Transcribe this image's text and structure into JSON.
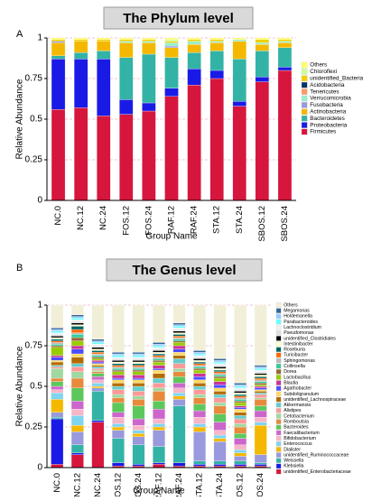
{
  "chart_data": [
    {
      "type": "stacked_bar",
      "panel_label": "A",
      "title": "The Phylum level",
      "xlabel": "Group Name",
      "ylabel": "Relative Abundance",
      "categories": [
        "NC.0",
        "NC.12",
        "NC.24",
        "FOS.12",
        "FOS.24",
        "RAF.12",
        "RAF.24",
        "STA.12",
        "STA.24",
        "SBOS.12",
        "SBOS.24"
      ],
      "ylim": [
        0,
        1
      ],
      "yticks": [
        0,
        0.25,
        0.5,
        0.75,
        1
      ],
      "grid": true,
      "series": [
        {
          "name": "Firmicutes",
          "color": "#d6163d",
          "values": [
            0.56,
            0.57,
            0.52,
            0.53,
            0.55,
            0.64,
            0.71,
            0.75,
            0.58,
            0.73,
            0.8
          ]
        },
        {
          "name": "Proteobacteria",
          "color": "#1a1ae6",
          "values": [
            0.31,
            0.3,
            0.35,
            0.09,
            0.05,
            0.05,
            0.1,
            0.05,
            0.03,
            0.03,
            0.02
          ]
        },
        {
          "name": "Bacteroidetes",
          "color": "#33b3a6",
          "values": [
            0.02,
            0.04,
            0.05,
            0.26,
            0.3,
            0.19,
            0.1,
            0.12,
            0.26,
            0.16,
            0.12
          ]
        },
        {
          "name": "Actinobacteria",
          "color": "#f5b800",
          "values": [
            0.08,
            0.07,
            0.06,
            0.09,
            0.07,
            0.06,
            0.05,
            0.05,
            0.11,
            0.04,
            0.03
          ]
        },
        {
          "name": "Fusobacteria",
          "color": "#9999dd",
          "values": [
            0.01,
            0,
            0,
            0,
            0,
            0.01,
            0,
            0,
            0,
            0,
            0
          ]
        },
        {
          "name": "Verrucomicrobia",
          "color": "#99eecc",
          "values": [
            0,
            0,
            0,
            0.01,
            0.01,
            0.02,
            0.02,
            0.01,
            0.01,
            0.01,
            0.01
          ]
        },
        {
          "name": "Tenericutes",
          "color": "#ff9966",
          "values": [
            0,
            0,
            0,
            0,
            0,
            0,
            0,
            0,
            0,
            0,
            0
          ]
        },
        {
          "name": "Acidobacteria",
          "color": "#003366",
          "values": [
            0,
            0,
            0,
            0,
            0,
            0,
            0,
            0,
            0,
            0,
            0
          ]
        },
        {
          "name": "unidentified_Bacteria",
          "color": "#f0d000",
          "values": [
            0.01,
            0.01,
            0.01,
            0.01,
            0.01,
            0.01,
            0.01,
            0.01,
            0,
            0.02,
            0.01
          ]
        },
        {
          "name": "Chloroflexi",
          "color": "#ccff99",
          "values": [
            0,
            0,
            0,
            0,
            0,
            0.01,
            0,
            0,
            0,
            0,
            0
          ]
        },
        {
          "name": "Others",
          "color": "#ffff66",
          "values": [
            0.01,
            0.01,
            0.01,
            0.01,
            0.01,
            0.01,
            0.01,
            0.01,
            0.01,
            0.01,
            0.01
          ]
        }
      ]
    },
    {
      "type": "stacked_bar",
      "panel_label": "B",
      "title": "The Genus level",
      "xlabel": "Group Name",
      "ylabel": "Relative Abundance",
      "categories": [
        "NC.0",
        "NC.12",
        "NC.24",
        "FOS.12",
        "FOS.24",
        "RAF.12",
        "RAF.24",
        "STA.12",
        "STA.24",
        "SBOS.12",
        "SBOS.24"
      ],
      "ylim": [
        0,
        1
      ],
      "yticks": [
        0,
        0.25,
        0.5,
        0.75,
        1
      ],
      "grid": true,
      "series": [
        {
          "name": "unidentified_Enterobacteriaceae",
          "color": "#d6163d",
          "values": [
            0.02,
            0.08,
            0.28,
            0.01,
            0.01,
            0.02,
            0.01,
            0.01,
            0.01,
            0.01,
            0.01
          ]
        },
        {
          "name": "Klebsiella",
          "color": "#1a1ae6",
          "values": [
            0.28,
            0.01,
            0.01,
            0.02,
            0.01,
            0.01,
            0.02,
            0.01,
            0.01,
            0.01,
            0.01
          ]
        },
        {
          "name": "Weissella",
          "color": "#33b3a6",
          "values": [
            0.01,
            0.05,
            0.18,
            0.15,
            0.12,
            0.1,
            0.35,
            0.02,
            0.02,
            0.02,
            0.01
          ]
        },
        {
          "name": "unidentified_Ruminococcaceae",
          "color": "#9999dd",
          "values": [
            0.03,
            0.08,
            0.02,
            0.05,
            0.05,
            0.1,
            0.04,
            0.18,
            0.12,
            0.03,
            0.05
          ]
        },
        {
          "name": "Dialister",
          "color": "#f5b800",
          "values": [
            0.08,
            0.04,
            0.01,
            0.02,
            0.02,
            0.02,
            0.02,
            0.03,
            0.02,
            0.02,
            0.18
          ]
        },
        {
          "name": "Enterococcus",
          "color": "#7fd4f0",
          "values": [
            0.04,
            0.06,
            0.02,
            0.02,
            0.02,
            0.02,
            0.02,
            0.02,
            0.02,
            0.02,
            0.02
          ]
        },
        {
          "name": "Bifidobacterium",
          "color": "#f7b6c8",
          "values": [
            0.02,
            0.04,
            0.02,
            0.04,
            0.03,
            0.03,
            0.03,
            0.04,
            0.03,
            0.03,
            0.03
          ]
        },
        {
          "name": "Faecalibacterium",
          "color": "#cc66cc",
          "values": [
            0.02,
            0.05,
            0.02,
            0.03,
            0.04,
            0.06,
            0.03,
            0.04,
            0.05,
            0.04,
            0.04
          ]
        },
        {
          "name": "Bacteroides",
          "color": "#5cc85c",
          "values": [
            0.03,
            0.08,
            0.02,
            0.06,
            0.08,
            0.05,
            0.04,
            0.04,
            0.05,
            0.03,
            0.03
          ]
        },
        {
          "name": "Romboutsia",
          "color": "#e88a3c",
          "values": [
            0.02,
            0.06,
            0.01,
            0.03,
            0.04,
            0.06,
            0.03,
            0.04,
            0.05,
            0.04,
            0.04
          ]
        },
        {
          "name": "Cetobacterium",
          "color": "#a0d8a0",
          "values": [
            0.06,
            0.04,
            0.01,
            0.02,
            0.02,
            0.02,
            0.02,
            0.02,
            0.02,
            0.02,
            0.01
          ]
        },
        {
          "name": "Alistipes",
          "color": "#ff9999",
          "values": [
            0.01,
            0.03,
            0.01,
            0.03,
            0.03,
            0.03,
            0.03,
            0.03,
            0.03,
            0.03,
            0.02
          ]
        },
        {
          "name": "Akkermansia",
          "color": "#66cccc",
          "values": [
            0.01,
            0.02,
            0.01,
            0.02,
            0.03,
            0.03,
            0.03,
            0.02,
            0.02,
            0.02,
            0.01
          ]
        },
        {
          "name": "unidentified_Lachnospiraceae",
          "color": "#b36b00",
          "values": [
            0.02,
            0.04,
            0.01,
            0.02,
            0.02,
            0.03,
            0.02,
            0.02,
            0.02,
            0.02,
            0.01
          ]
        },
        {
          "name": "Subdoligranulum",
          "color": "#ffd966",
          "values": [
            0.01,
            0.02,
            0.01,
            0.02,
            0.02,
            0.02,
            0.02,
            0.02,
            0.02,
            0.02,
            0.01
          ]
        },
        {
          "name": "Agathobacter",
          "color": "#4d4dff",
          "values": [
            0.02,
            0.03,
            0.01,
            0.01,
            0.01,
            0.01,
            0.02,
            0.02,
            0.02,
            0.01,
            0.01
          ]
        },
        {
          "name": "Blautia",
          "color": "#cc3399",
          "values": [
            0.01,
            0.02,
            0.01,
            0.02,
            0.02,
            0.02,
            0.02,
            0.02,
            0.02,
            0.01,
            0.01
          ]
        },
        {
          "name": "Lactobacillus",
          "color": "#99cc00",
          "values": [
            0.05,
            0.03,
            0.01,
            0.02,
            0.02,
            0.02,
            0.02,
            0.02,
            0.02,
            0.02,
            0.01
          ]
        },
        {
          "name": "Dorea",
          "color": "#996633",
          "values": [
            0.01,
            0.02,
            0.01,
            0.01,
            0.01,
            0.01,
            0.01,
            0.01,
            0.01,
            0.01,
            0.01
          ]
        },
        {
          "name": "Collinsella",
          "color": "#33cc99",
          "values": [
            0.01,
            0.02,
            0.01,
            0.01,
            0.01,
            0.01,
            0.01,
            0.01,
            0.01,
            0.01,
            0.01
          ]
        },
        {
          "name": "Sphingomonas",
          "color": "#bbbbbb",
          "values": [
            0.01,
            0.01,
            0.01,
            0.01,
            0.01,
            0.01,
            0.01,
            0.01,
            0.01,
            0.01,
            0.01
          ]
        },
        {
          "name": "Turicibacter",
          "color": "#ff6600",
          "values": [
            0.01,
            0.02,
            0.01,
            0.01,
            0.01,
            0.01,
            0.01,
            0.01,
            0.01,
            0.01,
            0.01
          ]
        },
        {
          "name": "Roseburia",
          "color": "#006666",
          "values": [
            0.01,
            0.02,
            0.01,
            0.01,
            0.01,
            0.01,
            0.01,
            0.01,
            0.01,
            0.01,
            0.01
          ]
        },
        {
          "name": "Intestinibacter",
          "color": "#ffffcc",
          "values": [
            0.01,
            0.01,
            0.01,
            0.01,
            0.01,
            0.01,
            0.01,
            0.01,
            0.01,
            0.01,
            0.01
          ]
        },
        {
          "name": "unidentified_Clostridiales",
          "color": "#000000",
          "values": [
            0.01,
            0.01,
            0.01,
            0.01,
            0.01,
            0.01,
            0.01,
            0.01,
            0.01,
            0.01,
            0.01
          ]
        },
        {
          "name": "Pseudomonas",
          "color": "#e0e0e0",
          "values": [
            0.01,
            0.01,
            0.01,
            0.01,
            0.01,
            0.01,
            0.01,
            0.01,
            0.01,
            0.01,
            0.01
          ]
        },
        {
          "name": "Lachnoclostridium",
          "color": "#f0f0f0",
          "values": [
            0.01,
            0.01,
            0.01,
            0.01,
            0.01,
            0.01,
            0.01,
            0.01,
            0.01,
            0.01,
            0.01
          ]
        },
        {
          "name": "Parabacteroides",
          "color": "#66ffff",
          "values": [
            0.01,
            0.01,
            0.01,
            0.01,
            0.01,
            0.01,
            0.01,
            0.01,
            0.01,
            0.01,
            0.01
          ]
        },
        {
          "name": "Holdemanella",
          "color": "#99ccff",
          "values": [
            0.01,
            0.01,
            0.01,
            0.01,
            0.01,
            0.01,
            0.01,
            0.01,
            0.01,
            0.01,
            0.01
          ]
        },
        {
          "name": "Megamonas",
          "color": "#336699",
          "values": [
            0.01,
            0.01,
            0.01,
            0.01,
            0.01,
            0.01,
            0.01,
            0.01,
            0.01,
            0.01,
            0.01
          ]
        },
        {
          "name": "Others",
          "color": "#f2efd8",
          "values": [
            0.14,
            0.06,
            0.21,
            0.29,
            0.29,
            0.23,
            0.11,
            0.28,
            0.33,
            0.48,
            0.37
          ]
        }
      ]
    }
  ]
}
